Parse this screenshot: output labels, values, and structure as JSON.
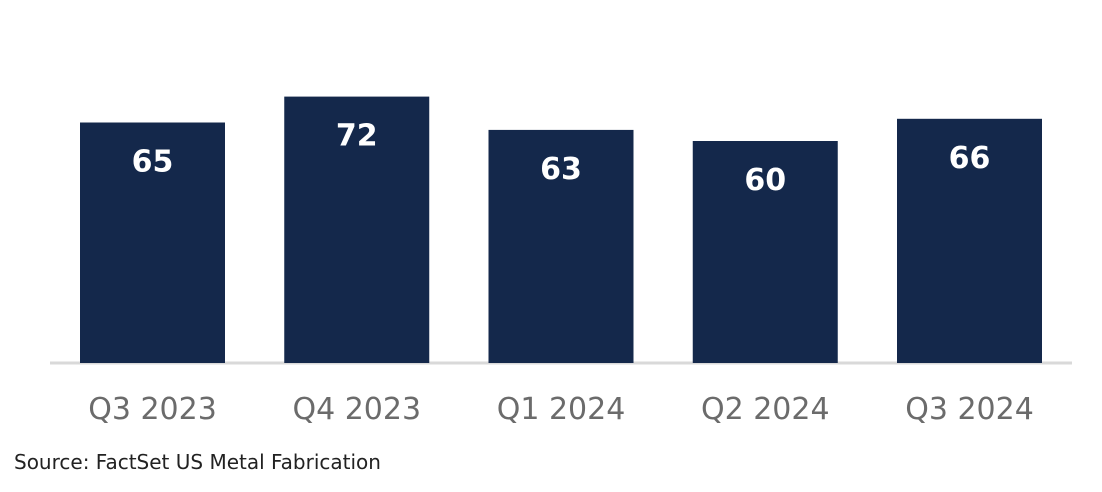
{
  "chart_data": {
    "type": "bar",
    "categories": [
      "Q3 2023",
      "Q4 2023",
      "Q1 2024",
      "Q2 2024",
      "Q3 2024"
    ],
    "values": [
      65,
      72,
      63,
      60,
      66
    ],
    "data_labels": [
      "65",
      "72",
      "63",
      "60",
      "66"
    ],
    "title": "",
    "xlabel": "",
    "ylabel": "",
    "ylim": [
      0,
      80
    ],
    "grid": false,
    "bar_color": "#14284b",
    "label_color": "#ffffff",
    "axis_line_color": "#d9d9d9"
  },
  "source": "Source: FactSet US Metal Fabrication"
}
